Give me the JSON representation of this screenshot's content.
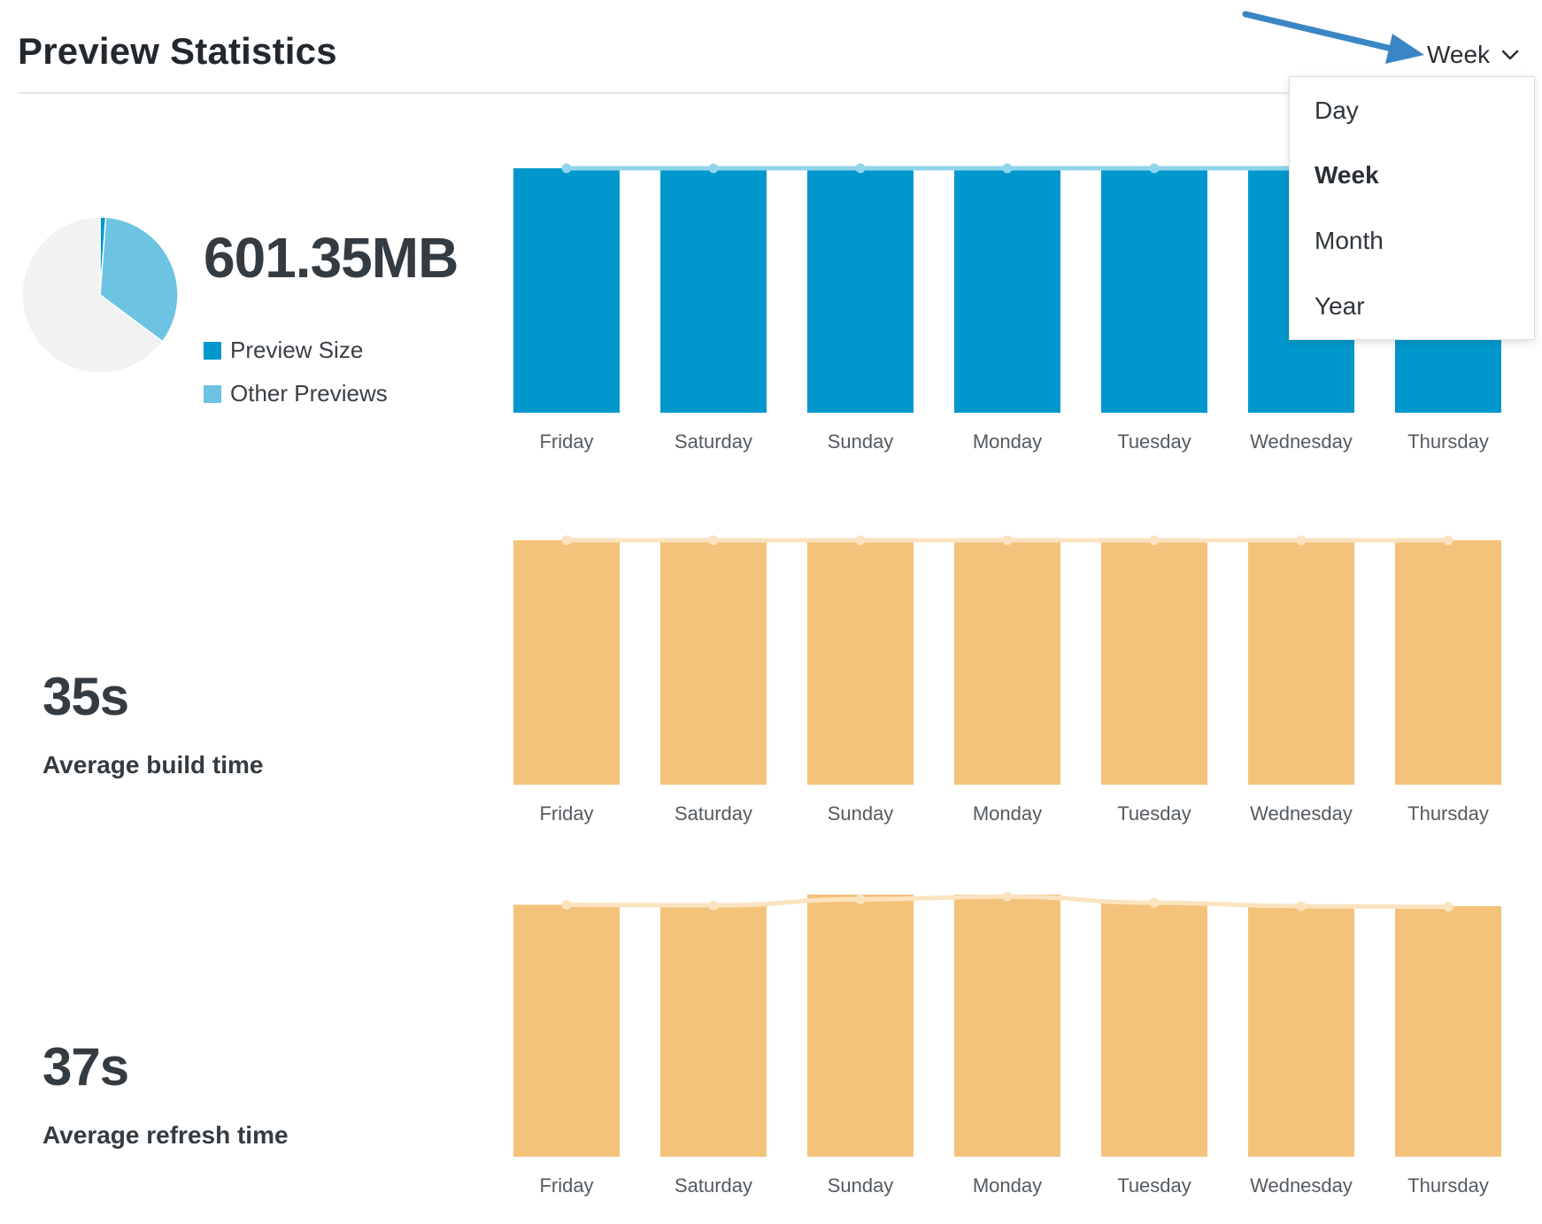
{
  "header": {
    "title": "Preview Statistics",
    "period_selected": "Week",
    "period_icon": "chevron-down-icon"
  },
  "dropdown": {
    "options": [
      "Day",
      "Week",
      "Month",
      "Year"
    ],
    "selected": "Week"
  },
  "storage": {
    "value": "601.35MB",
    "legend": [
      {
        "label": "Preview Size",
        "color": "#0098cc"
      },
      {
        "label": "Other Previews",
        "color": "#6cc3e2"
      }
    ],
    "pie": [
      {
        "name": "Preview Size",
        "value": 1.2,
        "color": "#0098cc"
      },
      {
        "name": "Other Previews",
        "value": 34,
        "color": "#6cc3e2"
      },
      {
        "name": "Remaining",
        "value": 64.8,
        "color": "#f2f2f2"
      }
    ]
  },
  "build": {
    "value": "35s",
    "label": "Average build time"
  },
  "refresh": {
    "value": "37s",
    "label": "Average refresh time"
  },
  "colors": {
    "blue_bar": "#0098cc",
    "blue_line": "#90d4ec",
    "orange_bar": "#f3c37c",
    "orange_line": "#fbe3c0",
    "annotation_arrow": "#3a86c4"
  },
  "chart_data": [
    {
      "type": "bar",
      "title": "",
      "categories": [
        "Friday",
        "Saturday",
        "Sunday",
        "Monday",
        "Tuesday",
        "Wednesday",
        "Thursday"
      ],
      "values": [
        100,
        100,
        100,
        100,
        100,
        100,
        100
      ],
      "line_values": [
        100,
        100,
        100,
        100,
        100,
        100,
        100
      ],
      "ylim": [
        0,
        100
      ],
      "grid": false,
      "color": "#0098cc",
      "line_color": "#90d4ec"
    },
    {
      "type": "bar",
      "title": "",
      "categories": [
        "Friday",
        "Saturday",
        "Sunday",
        "Monday",
        "Tuesday",
        "Wednesday",
        "Thursday"
      ],
      "values": [
        100,
        100,
        100,
        100,
        100,
        100,
        100
      ],
      "line_values": [
        100,
        100,
        100,
        100,
        100,
        100,
        100
      ],
      "ylim": [
        0,
        100
      ],
      "grid": false,
      "color": "#f3c37c",
      "line_color": "#fbe3c0"
    },
    {
      "type": "bar",
      "title": "",
      "categories": [
        "Friday",
        "Saturday",
        "Sunday",
        "Monday",
        "Tuesday",
        "Wednesday",
        "Thursday"
      ],
      "values": [
        37,
        37,
        38.5,
        38.5,
        37.5,
        36.8,
        36.8
      ],
      "line_values": [
        37,
        36.9,
        37.8,
        38.2,
        37.3,
        36.8,
        36.7
      ],
      "ylim": [
        0,
        38.5
      ],
      "grid": false,
      "color": "#f3c37c",
      "line_color": "#fbe3c0"
    }
  ]
}
